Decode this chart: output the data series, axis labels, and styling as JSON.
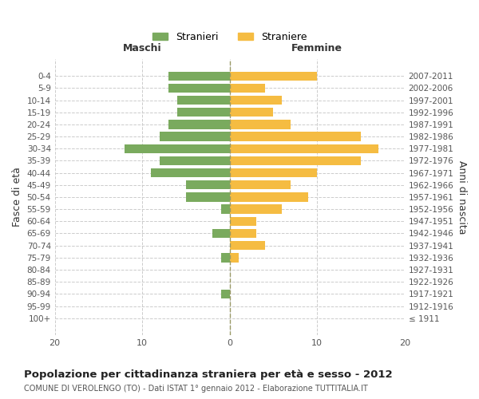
{
  "age_groups": [
    "100+",
    "95-99",
    "90-94",
    "85-89",
    "80-84",
    "75-79",
    "70-74",
    "65-69",
    "60-64",
    "55-59",
    "50-54",
    "45-49",
    "40-44",
    "35-39",
    "30-34",
    "25-29",
    "20-24",
    "15-19",
    "10-14",
    "5-9",
    "0-4"
  ],
  "birth_years": [
    "≤ 1911",
    "1912-1916",
    "1917-1921",
    "1922-1926",
    "1927-1931",
    "1932-1936",
    "1937-1941",
    "1942-1946",
    "1947-1951",
    "1952-1956",
    "1957-1961",
    "1962-1966",
    "1967-1971",
    "1972-1976",
    "1977-1981",
    "1982-1986",
    "1987-1991",
    "1992-1996",
    "1997-2001",
    "2002-2006",
    "2007-2011"
  ],
  "maschi": [
    0,
    0,
    1,
    0,
    0,
    1,
    0,
    2,
    0,
    1,
    5,
    5,
    9,
    8,
    12,
    8,
    7,
    6,
    6,
    7,
    7
  ],
  "femmine": [
    0,
    0,
    0,
    0,
    0,
    1,
    4,
    3,
    3,
    6,
    9,
    7,
    10,
    15,
    17,
    15,
    7,
    5,
    6,
    4,
    10
  ],
  "maschi_color": "#7aaa5e",
  "femmine_color": "#f5bc42",
  "background_color": "#ffffff",
  "grid_color": "#cccccc",
  "title": "Popolazione per cittadinanza straniera per età e sesso - 2012",
  "subtitle": "COMUNE DI VEROLENGO (TO) - Dati ISTAT 1° gennaio 2012 - Elaborazione TUTTITALIA.IT",
  "ylabel_left": "Fasce di età",
  "ylabel_right": "Anni di nascita",
  "maschi_label": "Stranieri",
  "femmine_label": "Straniere",
  "xlim": 20,
  "header_maschi": "Maschi",
  "header_femmine": "Femmine"
}
